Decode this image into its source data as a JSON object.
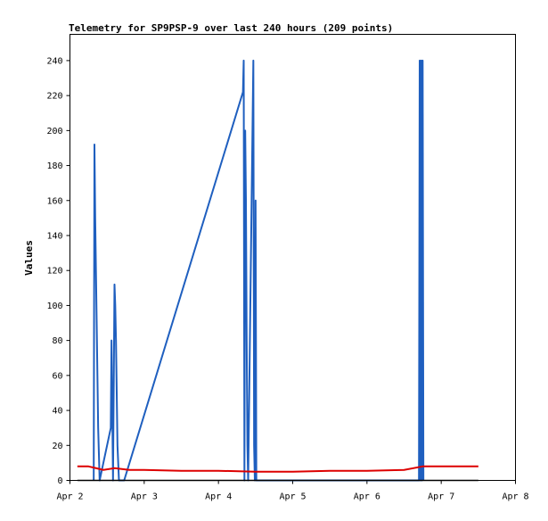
{
  "chart_data": {
    "type": "line",
    "title": "Telemetry for SP9PSP-9 over last 240 hours (209 points)",
    "xlabel": "",
    "ylabel": "Values",
    "xlim": [
      0,
      6
    ],
    "ylim": [
      0,
      255
    ],
    "grid": false,
    "legend": "none",
    "x_tick_values": [
      0,
      1,
      2,
      3,
      4,
      5,
      6
    ],
    "x_tick_labels": [
      "Apr 2",
      "Apr 3",
      "Apr 4",
      "Apr 5",
      "Apr 6",
      "Apr 7",
      "Apr 8"
    ],
    "y_tick_values": [
      0,
      20,
      40,
      60,
      80,
      100,
      120,
      140,
      160,
      180,
      200,
      220,
      240
    ],
    "y_tick_labels": [
      "0",
      "20",
      "40",
      "60",
      "80",
      "100",
      "120",
      "140",
      "160",
      "180",
      "200",
      "220",
      "240"
    ],
    "series": [
      {
        "color": "#1f5fbf",
        "x": [
          0.32,
          0.33,
          0.34,
          0.35,
          0.36,
          0.37,
          0.38,
          0.4,
          0.55,
          0.56,
          0.57,
          0.58,
          0.6,
          0.61,
          0.62,
          0.63,
          0.64,
          0.66,
          0.73,
          2.33,
          2.34,
          2.35,
          2.36,
          2.37,
          2.38,
          2.39,
          2.4,
          2.47,
          2.48,
          2.49,
          2.5,
          2.51,
          4.7,
          4.71,
          4.72,
          4.73,
          4.74,
          4.75,
          4.76
        ],
        "y": [
          0,
          192,
          150,
          120,
          90,
          60,
          30,
          0,
          30,
          80,
          40,
          0,
          112,
          100,
          80,
          50,
          20,
          0,
          0,
          222,
          240,
          0,
          200,
          160,
          80,
          20,
          0,
          240,
          20,
          0,
          160,
          0,
          0,
          240,
          0,
          240,
          0,
          240,
          0
        ]
      },
      {
        "color": "#dd0000",
        "x": [
          0.1,
          0.25,
          0.35,
          0.45,
          0.6,
          0.8,
          1.0,
          1.5,
          2.0,
          2.5,
          3.0,
          3.5,
          4.0,
          4.5,
          4.75,
          5.0,
          5.5
        ],
        "y": [
          8,
          8,
          7,
          6,
          7,
          6,
          6,
          5.5,
          5.5,
          5,
          5,
          5.5,
          5.5,
          6,
          8,
          8,
          8
        ]
      },
      {
        "color": "#000000",
        "x": [
          0.1,
          5.5
        ],
        "y": [
          0,
          0
        ]
      }
    ]
  }
}
